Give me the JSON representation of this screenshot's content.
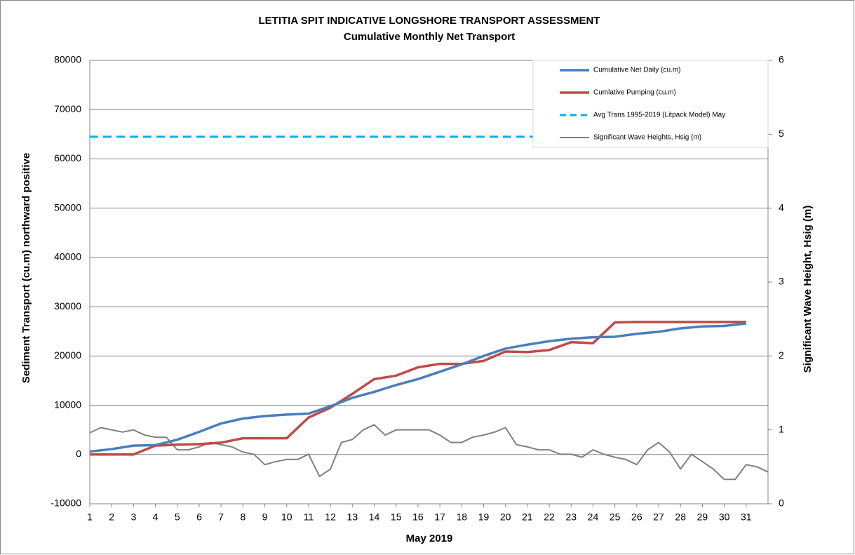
{
  "chart_data": {
    "type": "line",
    "title": "LETITIA SPIT INDICATIVE LONGSHORE TRANSPORT ASSESSMENT",
    "subtitle": "Cumulative Monthly Net Transport",
    "xlabel": "May 2019",
    "ylabel": "Sediment Transport (cu.m) northward positive",
    "y2label": "Significant Wave Height, Hsig (m)",
    "xlim": [
      1,
      32
    ],
    "xticks": [
      1,
      2,
      3,
      4,
      5,
      6,
      7,
      8,
      9,
      10,
      11,
      12,
      13,
      14,
      15,
      16,
      17,
      18,
      19,
      20,
      21,
      22,
      23,
      24,
      25,
      26,
      27,
      28,
      29,
      30,
      31
    ],
    "ylim": [
      -10000,
      80000
    ],
    "yticks": [
      -10000,
      0,
      10000,
      20000,
      30000,
      40000,
      50000,
      60000,
      70000,
      80000
    ],
    "y2lim": [
      0,
      6
    ],
    "y2ticks": [
      0,
      1,
      2,
      3,
      4,
      5,
      6
    ],
    "grid": true,
    "legend": "top-right",
    "series": [
      {
        "name": "Cumulative Net Daily (cu.m)",
        "color": "#4a7ebb",
        "width": 3.5,
        "x": [
          1,
          2,
          3,
          4,
          5,
          6,
          7,
          8,
          9,
          10,
          11,
          12,
          13,
          14,
          15,
          16,
          17,
          18,
          19,
          20,
          21,
          22,
          23,
          24,
          25,
          26,
          27,
          28,
          29,
          30,
          31
        ],
        "values": [
          600,
          1100,
          1800,
          1900,
          3000,
          4600,
          6300,
          7300,
          7800,
          8100,
          8300,
          9800,
          11500,
          12700,
          14100,
          15300,
          16800,
          18300,
          20000,
          21500,
          22300,
          23000,
          23500,
          23800,
          23900,
          24500,
          24900,
          25600,
          26000,
          26100,
          26600
        ]
      },
      {
        "name": "Cumlative Pumping (cu.m)",
        "color": "#be4b48",
        "width": 3.5,
        "x": [
          1,
          2,
          3,
          4,
          5,
          6,
          7,
          8,
          9,
          10,
          11,
          12,
          13,
          14,
          15,
          16,
          17,
          18,
          19,
          20,
          21,
          22,
          23,
          24,
          25,
          26,
          27,
          28,
          29,
          30,
          31
        ],
        "values": [
          0,
          0,
          0,
          1800,
          2000,
          2100,
          2400,
          3300,
          3300,
          3300,
          7500,
          9500,
          12300,
          15300,
          16000,
          17700,
          18400,
          18400,
          19000,
          20900,
          20800,
          21200,
          22800,
          22600,
          26800,
          26900,
          26900,
          26900,
          26900,
          26900,
          26900
        ]
      },
      {
        "name": "Avg  Trans 1995-2019 (Litpack Model) May",
        "color": "#00b0f0",
        "width": 3,
        "dash": true,
        "x": [
          1,
          32
        ],
        "values": [
          64500,
          64500
        ]
      },
      {
        "name": "Significant Wave Heights, Hsig (m)",
        "color": "#808080",
        "width": 2,
        "axis": "y2",
        "x": [
          1,
          1.5,
          2,
          2.5,
          3,
          3.5,
          4,
          4.5,
          5,
          5.5,
          6,
          6.5,
          7,
          7.5,
          8,
          8.5,
          9,
          9.5,
          10,
          10.5,
          11,
          11.5,
          12,
          12.5,
          13,
          13.5,
          14,
          14.5,
          15,
          15.5,
          16,
          16.5,
          17,
          17.5,
          18,
          18.5,
          19,
          19.5,
          20,
          20.5,
          21,
          21.5,
          22,
          22.5,
          23,
          23.5,
          24,
          24.5,
          25,
          25.5,
          26,
          26.5,
          27,
          27.5,
          28,
          28.5,
          29,
          29.5,
          30,
          30.5,
          31,
          31.5,
          32
        ],
        "values": [
          0.96,
          1.03,
          1.0,
          0.97,
          1.0,
          0.93,
          0.9,
          0.9,
          0.73,
          0.73,
          0.77,
          0.83,
          0.8,
          0.77,
          0.7,
          0.67,
          0.53,
          0.57,
          0.6,
          0.6,
          0.67,
          0.37,
          0.47,
          0.83,
          0.87,
          1.0,
          1.07,
          0.93,
          1.0,
          1.0,
          1.0,
          1.0,
          0.93,
          0.83,
          0.83,
          0.9,
          0.93,
          0.97,
          1.03,
          0.8,
          0.77,
          0.73,
          0.73,
          0.67,
          0.67,
          0.63,
          0.73,
          0.67,
          0.63,
          0.6,
          0.53,
          0.73,
          0.83,
          0.7,
          0.47,
          0.67,
          0.57,
          0.47,
          0.33,
          0.33,
          0.53,
          0.5,
          0.43
        ]
      }
    ]
  }
}
